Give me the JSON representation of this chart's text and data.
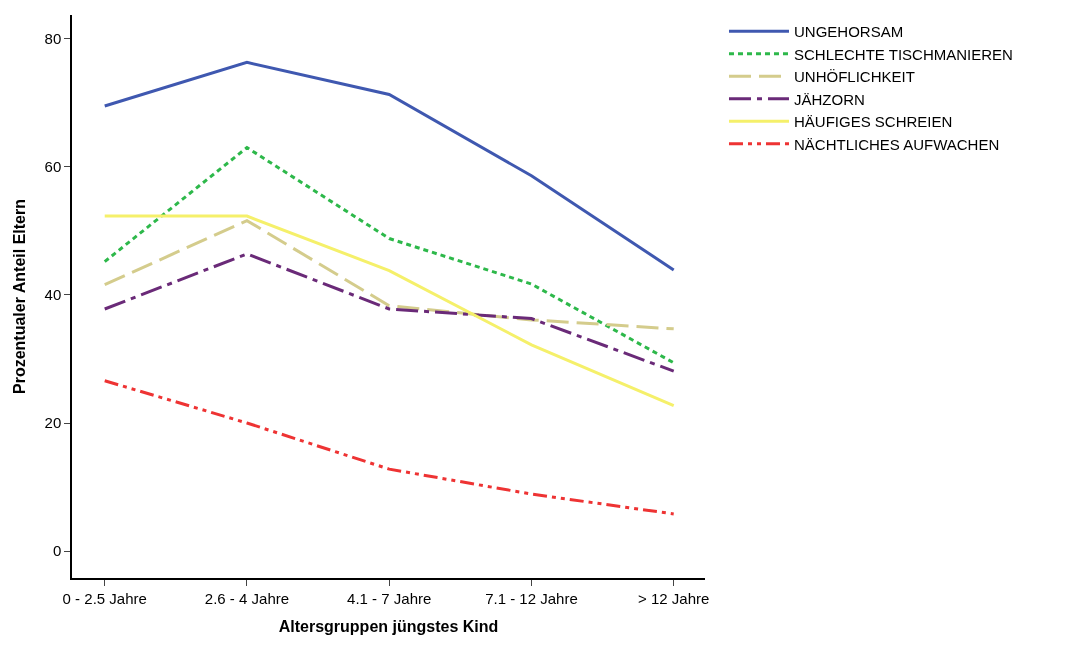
{
  "chart_data": {
    "type": "line",
    "xlabel": "Altersgruppen jüngstes Kind",
    "ylabel": "Prozentualer Anteil Eltern",
    "categories": [
      "0 - 2.5 Jahre",
      "2.6 - 4 Jahre",
      "4.1 - 7 Jahre",
      "7.1 - 12 Jahre",
      "> 12 Jahre"
    ],
    "ylim": [
      -4.2,
      83.7
    ],
    "yticks": [
      0,
      20,
      40,
      60,
      80
    ],
    "legend": "top right",
    "marker": "none",
    "series": [
      {
        "name": "UNGEHORSAM",
        "color": "#3f58b0",
        "line_style": "solid",
        "values": [
          69.5,
          76.3,
          71.3,
          58.6,
          43.9
        ]
      },
      {
        "name": "SCHLECHTE TISCHMANIEREN",
        "color": "#2db84a",
        "line_style": "dotted",
        "values": [
          45.2,
          63.0,
          48.8,
          41.7,
          29.4
        ]
      },
      {
        "name": "UNHÖFLICHKEIT",
        "color": "#d4cc8c",
        "line_style": "dashed",
        "values": [
          41.6,
          51.6,
          38.3,
          36.1,
          34.7
        ]
      },
      {
        "name": "JÄHZORN",
        "color": "#6a2a78",
        "line_style": "dashdot",
        "values": [
          37.8,
          46.4,
          37.8,
          36.3,
          28.1
        ]
      },
      {
        "name": "HÄUFIGES SCHREIEN",
        "color": "#f5f06a",
        "line_style": "solid",
        "values": [
          52.3,
          52.3,
          43.8,
          32.2,
          22.7
        ]
      },
      {
        "name": "NÄCHTLICHES AUFWACHEN",
        "color": "#ee3333",
        "line_style": "dashdotdot",
        "values": [
          26.6,
          20.0,
          12.8,
          8.9,
          5.8
        ]
      }
    ]
  }
}
